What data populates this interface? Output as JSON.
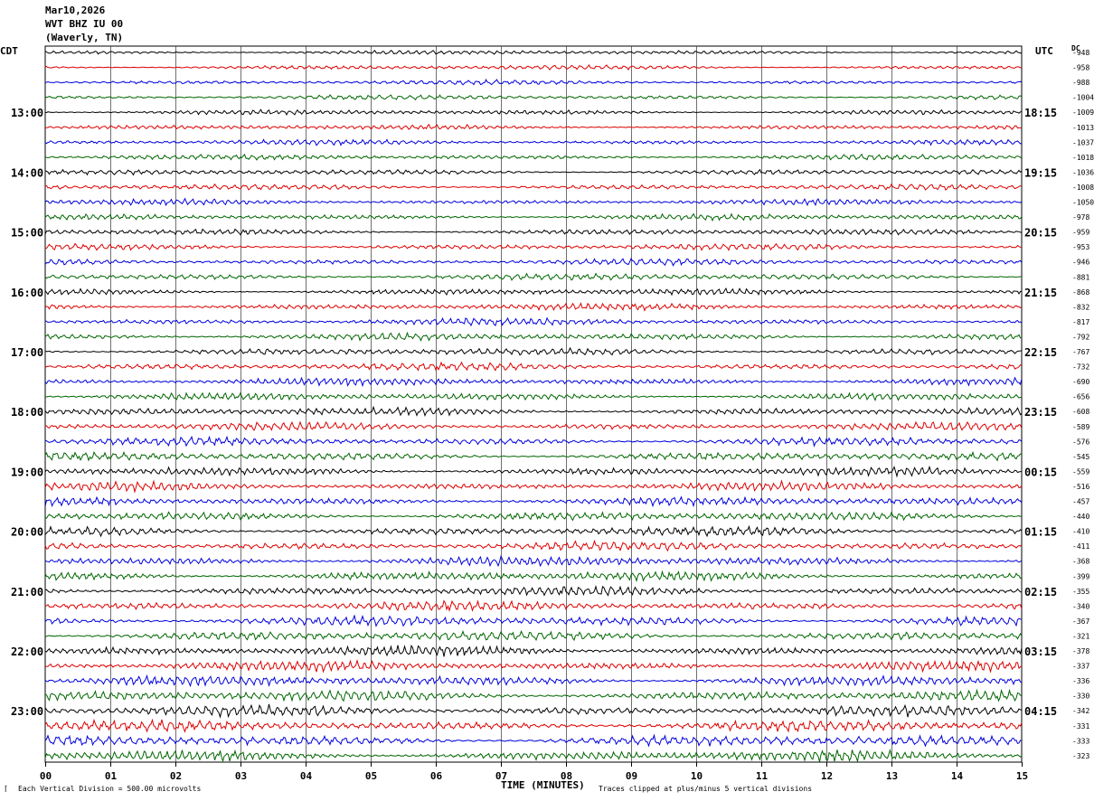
{
  "header": {
    "date": "Mar10,2026",
    "station": "WVT BHZ IU 00",
    "location": "(Waverly, TN)"
  },
  "left_axis_label": "CDT",
  "right_axis_label": "UTC",
  "dc_label": "DC",
  "footer": {
    "division_note": "Each Vertical Division =  500.00 microvolts",
    "time_label": "TIME (MINUTES)",
    "clip_note": "Traces clipped at plus/minus 5 vertical divisions"
  },
  "colors": {
    "trace_cycle": [
      "#000000",
      "#dd0000",
      "#0000dd",
      "#006600"
    ],
    "grid": "#000000"
  },
  "chart_data": {
    "type": "line",
    "title": "",
    "xlabel": "TIME (MINUTES)",
    "ylabel": "",
    "x_range": [
      0,
      15
    ],
    "x_ticks": [
      "00",
      "01",
      "02",
      "03",
      "04",
      "05",
      "06",
      "07",
      "08",
      "09",
      "10",
      "11",
      "12",
      "13",
      "14",
      "15"
    ],
    "rows_per_hour": 4,
    "row_count": 48,
    "left_hour_labels": [
      "13:00",
      "14:00",
      "15:00",
      "16:00",
      "17:00",
      "18:00",
      "19:00",
      "20:00",
      "21:00",
      "22:00",
      "23:00"
    ],
    "right_hour_labels": [
      "18:15",
      "19:15",
      "20:15",
      "21:15",
      "22:15",
      "23:15",
      "00:15",
      "01:15",
      "02:15",
      "03:15",
      "04:15"
    ],
    "dc_offsets": [
      "-948",
      "-958",
      "-988",
      "-1004",
      "-1009",
      "-1013",
      "-1037",
      "-1018",
      "-1036",
      "-1008",
      "-1050",
      "-978",
      "-959",
      "-953",
      "-946",
      "-881",
      "-868",
      "-832",
      "-817",
      "-792",
      "-767",
      "-732",
      "-690",
      "-656",
      "-608",
      "-589",
      "-576",
      "-545",
      "-559",
      "-516",
      "-457",
      "-440",
      "-410",
      "-411",
      "-368",
      "-399",
      "-355",
      "-340",
      "-367",
      "-321",
      "-378",
      "-337",
      "-336",
      "-330",
      "-342",
      "-331",
      "-333",
      "-323"
    ],
    "vertical_division": "500.00 microvolts",
    "clip": "plus/minus 5 vertical divisions"
  }
}
